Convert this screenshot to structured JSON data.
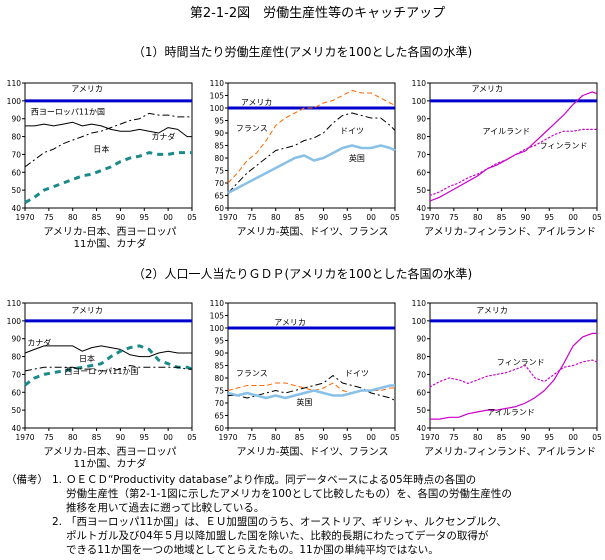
{
  "figure_title": "第2-1-2図　労働生産性等のキャッチアップ",
  "section1_title": "（1）時間当たり労働生産性(アメリカを100とした各国の水準)",
  "section2_title": "（2）人口一人当たりＧＤＰ(アメリカを100とした各国の水準)",
  "notes": {
    "prefix": "（備考）",
    "n1_num": "1.",
    "n1_line1": "ＯＥＣＤ“Productivity database”より作成。同データベースによる05年時点の各国の",
    "n1_line2": "労働生産性（第2-1-1図に示したアメリカを100として比較したもの）を、各国の労働生産性の",
    "n1_line3": "推移を用いて過去に遡って比較している。",
    "n2_num": "2.",
    "n2_line1": "「西ヨーロッパ11か国」は、ＥＵ加盟国のうち、オーストリア、ギリシャ、ルクセンブルク、",
    "n2_line2": "ポルトガル及び04年５月以降加盟した国を除いた、比較的長期にわたってデータの取得が",
    "n2_line3": "できる11か国を一つの地域としてとらえたもの。11か国の単純平均ではない。"
  },
  "chart_data": [
    {
      "type": "line",
      "id": "c1",
      "caption_line1": "アメリカ-日本、西ヨーロッパ",
      "caption_line2": "11か国、カナダ",
      "x_ticks": [
        "1970",
        "75",
        "80",
        "85",
        "90",
        "95",
        "00",
        "05"
      ],
      "y_ticks": [
        "40",
        "50",
        "60",
        "70",
        "80",
        "90",
        "100",
        "110"
      ],
      "ylim": [
        40,
        110
      ],
      "xlim": [
        1970,
        2005
      ],
      "series": [
        {
          "name": "アメリカ",
          "color": "#0000cc",
          "style": "solid",
          "width": 3,
          "label_x": 1983,
          "label_y": 107,
          "x": [
            1970,
            2005
          ],
          "y": [
            100,
            100
          ]
        },
        {
          "name": "西ヨーロッパ11か国",
          "color": "#000000",
          "style": "dashdot",
          "width": 1,
          "label_x": 1979,
          "label_y": 94,
          "x": [
            1970,
            1972,
            1974,
            1976,
            1978,
            1980,
            1982,
            1984,
            1986,
            1988,
            1990,
            1992,
            1994,
            1996,
            1998,
            2000,
            2002,
            2004,
            2005
          ],
          "y": [
            63,
            67,
            71,
            73,
            76,
            78,
            80,
            82,
            83,
            85,
            87,
            89,
            90,
            93,
            92,
            92,
            91,
            91,
            91
          ]
        },
        {
          "name": "カナダ",
          "color": "#000000",
          "style": "solid",
          "width": 1,
          "label_x": 1999,
          "label_y": 80,
          "x": [
            1970,
            1972,
            1974,
            1976,
            1978,
            1980,
            1982,
            1984,
            1986,
            1988,
            1990,
            1992,
            1994,
            1996,
            1998,
            2000,
            2002,
            2004,
            2005
          ],
          "y": [
            86,
            86,
            87,
            86,
            87,
            88,
            86,
            87,
            86,
            84,
            83,
            83,
            84,
            83,
            82,
            85,
            84,
            80,
            80
          ]
        },
        {
          "name": "日本",
          "color": "#1a8a8a",
          "style": "bigdash",
          "width": 3,
          "label_x": 1986,
          "label_y": 73,
          "x": [
            1970,
            1972,
            1974,
            1976,
            1978,
            1980,
            1982,
            1984,
            1986,
            1988,
            1990,
            1992,
            1994,
            1996,
            1998,
            2000,
            2002,
            2004,
            2005
          ],
          "y": [
            43,
            46,
            50,
            52,
            54,
            56,
            58,
            59,
            61,
            63,
            66,
            68,
            69,
            71,
            70,
            70,
            71,
            71,
            71
          ]
        }
      ]
    },
    {
      "type": "line",
      "id": "c2",
      "caption_line1": "アメリカ-英国、ドイツ、フランス",
      "caption_line2": "",
      "x_ticks": [
        "1970",
        "75",
        "80",
        "85",
        "90",
        "95",
        "00",
        "05"
      ],
      "y_ticks": [
        "60",
        "65",
        "70",
        "75",
        "80",
        "85",
        "90",
        "95",
        "100",
        "105",
        "110"
      ],
      "ylim": [
        60,
        110
      ],
      "xlim": [
        1970,
        2005
      ],
      "series": [
        {
          "name": "アメリカ",
          "color": "#0000cc",
          "style": "solid",
          "width": 3,
          "label_x": 1976,
          "label_y": 102.5,
          "x": [
            1970,
            2005
          ],
          "y": [
            100,
            100
          ]
        },
        {
          "name": "フランス",
          "color": "#ff6600",
          "style": "dash",
          "width": 1,
          "label_x": 1975,
          "label_y": 92,
          "x": [
            1970,
            1972,
            1974,
            1976,
            1978,
            1980,
            1982,
            1984,
            1986,
            1988,
            1990,
            1992,
            1994,
            1996,
            1998,
            2000,
            2002,
            2004,
            2005
          ],
          "y": [
            70,
            74,
            79,
            82,
            87,
            93,
            96,
            98,
            100,
            100,
            102,
            103,
            105,
            107,
            106,
            106,
            104,
            102,
            101
          ]
        },
        {
          "name": "ドイツ",
          "color": "#000000",
          "style": "dashdot",
          "width": 1,
          "label_x": 1996,
          "label_y": 91,
          "x": [
            1970,
            1972,
            1974,
            1976,
            1978,
            1980,
            1982,
            1984,
            1986,
            1988,
            1990,
            1992,
            1994,
            1996,
            1998,
            2000,
            2002,
            2004,
            2005
          ],
          "y": [
            66,
            70,
            74,
            77,
            80,
            83,
            84,
            85,
            87,
            88,
            90,
            94,
            97,
            98,
            97,
            96,
            96,
            93,
            91
          ]
        },
        {
          "name": "英国",
          "color": "#88c0e8",
          "style": "solid",
          "width": 2.5,
          "label_x": 1997,
          "label_y": 80,
          "x": [
            1970,
            1972,
            1974,
            1976,
            1978,
            1980,
            1982,
            1984,
            1986,
            1988,
            1990,
            1992,
            1994,
            1996,
            1998,
            2000,
            2002,
            2004,
            2005
          ],
          "y": [
            66,
            68,
            70,
            72,
            74,
            76,
            78,
            80,
            81,
            79,
            80,
            82,
            84,
            85,
            84,
            84,
            85,
            84,
            83
          ]
        }
      ]
    },
    {
      "type": "line",
      "id": "c3",
      "caption_line1": "アメリカ-フィンランド、アイルランド",
      "caption_line2": "",
      "x_ticks": [
        "1970",
        "75",
        "80",
        "85",
        "90",
        "95",
        "00",
        "05"
      ],
      "y_ticks": [
        "40",
        "50",
        "60",
        "70",
        "80",
        "90",
        "100",
        "110"
      ],
      "ylim": [
        40,
        110
      ],
      "xlim": [
        1970,
        2005
      ],
      "series": [
        {
          "name": "アメリカ",
          "color": "#0000cc",
          "style": "solid",
          "width": 3,
          "label_x": 1982,
          "label_y": 107,
          "x": [
            1970,
            2005
          ],
          "y": [
            100,
            100
          ]
        },
        {
          "name": "アイルランド",
          "color": "#cc00cc",
          "style": "solid",
          "width": 1.2,
          "label_x": 1986,
          "label_y": 83,
          "x": [
            1970,
            1972,
            1974,
            1976,
            1978,
            1980,
            1982,
            1984,
            1986,
            1988,
            1990,
            1992,
            1994,
            1996,
            1998,
            2000,
            2002,
            2004,
            2005
          ],
          "y": [
            44,
            46,
            49,
            52,
            55,
            58,
            62,
            64,
            67,
            70,
            72,
            77,
            82,
            87,
            92,
            98,
            103,
            105,
            104
          ]
        },
        {
          "name": "フィンランド",
          "color": "#cc00cc",
          "style": "dot",
          "width": 1.2,
          "label_x": 1998,
          "label_y": 75,
          "x": [
            1970,
            1972,
            1974,
            1976,
            1978,
            1980,
            1982,
            1984,
            1986,
            1988,
            1990,
            1992,
            1994,
            1996,
            1998,
            2000,
            2002,
            2004,
            2005
          ],
          "y": [
            47,
            49,
            52,
            54,
            57,
            59,
            62,
            65,
            67,
            70,
            73,
            75,
            78,
            81,
            83,
            83,
            84,
            84,
            84
          ]
        }
      ]
    },
    {
      "type": "line",
      "id": "c4",
      "caption_line1": "アメリカ-日本、西ヨーロッパ",
      "caption_line2": "11か国、カナダ",
      "x_ticks": [
        "1970",
        "75",
        "80",
        "85",
        "90",
        "95",
        "00",
        "05"
      ],
      "y_ticks": [
        "40",
        "50",
        "60",
        "70",
        "80",
        "90",
        "100",
        "110"
      ],
      "ylim": [
        40,
        110
      ],
      "xlim": [
        1970,
        2005
      ],
      "series": [
        {
          "name": "アメリカ",
          "color": "#0000cc",
          "style": "solid",
          "width": 3,
          "label_x": 1983,
          "label_y": 106,
          "x": [
            1970,
            2005
          ],
          "y": [
            100,
            100
          ]
        },
        {
          "name": "カナダ",
          "color": "#000000",
          "style": "solid",
          "width": 1,
          "label_x": 1973,
          "label_y": 88,
          "x": [
            1970,
            1972,
            1974,
            1976,
            1978,
            1980,
            1982,
            1984,
            1986,
            1988,
            1990,
            1992,
            1994,
            1996,
            1998,
            2000,
            2002,
            2004,
            2005
          ],
          "y": [
            82,
            84,
            86,
            86,
            86,
            86,
            83,
            85,
            86,
            85,
            84,
            81,
            80,
            80,
            82,
            83,
            82,
            82,
            82
          ]
        },
        {
          "name": "日本",
          "color": "#1a8a8a",
          "style": "bigdash",
          "width": 3,
          "label_x": 1983,
          "label_y": 79,
          "x": [
            1970,
            1972,
            1974,
            1976,
            1978,
            1980,
            1982,
            1984,
            1986,
            1988,
            1990,
            1992,
            1994,
            1996,
            1998,
            2000,
            2002,
            2004,
            2005
          ],
          "y": [
            64,
            68,
            70,
            71,
            72,
            73,
            74,
            75,
            76,
            80,
            83,
            85,
            86,
            84,
            78,
            76,
            74,
            74,
            73
          ]
        },
        {
          "name": "西ヨーロッパ11か国",
          "color": "#000000",
          "style": "dashdot",
          "width": 1,
          "label_x": 1986,
          "label_y": 72,
          "x": [
            1970,
            1972,
            1974,
            1976,
            1978,
            1980,
            1982,
            1984,
            1986,
            1988,
            1990,
            1992,
            1994,
            1996,
            1998,
            2000,
            2002,
            2004,
            2005
          ],
          "y": [
            72,
            73,
            74,
            74,
            74,
            74,
            73,
            73,
            72,
            72,
            73,
            75,
            74,
            74,
            74,
            74,
            74,
            73,
            73
          ]
        }
      ]
    },
    {
      "type": "line",
      "id": "c5",
      "caption_line1": "アメリカ-英国、ドイツ、フランス",
      "caption_line2": "",
      "x_ticks": [
        "1970",
        "75",
        "80",
        "85",
        "90",
        "95",
        "00",
        "05"
      ],
      "y_ticks": [
        "60",
        "65",
        "70",
        "75",
        "80",
        "85",
        "90",
        "95",
        "100",
        "105",
        "110"
      ],
      "ylim": [
        60,
        110
      ],
      "xlim": [
        1970,
        2005
      ],
      "series": [
        {
          "name": "アメリカ",
          "color": "#0000cc",
          "style": "solid",
          "width": 3,
          "label_x": 1983,
          "label_y": 102.5,
          "x": [
            1970,
            2005
          ],
          "y": [
            100,
            100
          ]
        },
        {
          "name": "フランス",
          "color": "#ff6600",
          "style": "dash",
          "width": 1,
          "label_x": 1975,
          "label_y": 82,
          "x": [
            1970,
            1972,
            1974,
            1976,
            1978,
            1980,
            1982,
            1984,
            1986,
            1988,
            1990,
            1992,
            1994,
            1996,
            1998,
            2000,
            2002,
            2004,
            2005
          ],
          "y": [
            75,
            76,
            77,
            77,
            77,
            78,
            78,
            77,
            76,
            75,
            76,
            78,
            75,
            74,
            75,
            75,
            75,
            76,
            76
          ]
        },
        {
          "name": "ドイツ",
          "color": "#000000",
          "style": "dashdot",
          "width": 1,
          "label_x": 1997,
          "label_y": 82,
          "x": [
            1970,
            1972,
            1974,
            1976,
            1978,
            1980,
            1982,
            1984,
            1986,
            1988,
            1990,
            1992,
            1994,
            1996,
            1998,
            2000,
            2002,
            2004,
            2005
          ],
          "y": [
            73,
            73,
            72,
            73,
            74,
            75,
            74,
            75,
            76,
            77,
            78,
            81,
            78,
            77,
            76,
            74,
            73,
            72,
            71
          ]
        },
        {
          "name": "英国",
          "color": "#88c0e8",
          "style": "solid",
          "width": 2.5,
          "label_x": 1986,
          "label_y": 70.5,
          "x": [
            1970,
            1972,
            1974,
            1976,
            1978,
            1980,
            1982,
            1984,
            1986,
            1988,
            1990,
            1992,
            1994,
            1996,
            1998,
            2000,
            2002,
            2004,
            2005
          ],
          "y": [
            74,
            73,
            74,
            73,
            72,
            73,
            72,
            73,
            74,
            75,
            74,
            73,
            73,
            74,
            75,
            75,
            76,
            77,
            77
          ]
        }
      ]
    },
    {
      "type": "line",
      "id": "c6",
      "caption_line1": "アメリカ-フィンランド、アイルランド",
      "caption_line2": "",
      "x_ticks": [
        "1970",
        "75",
        "80",
        "85",
        "90",
        "95",
        "00",
        "05"
      ],
      "y_ticks": [
        "40",
        "50",
        "60",
        "70",
        "80",
        "90",
        "100",
        "110"
      ],
      "ylim": [
        40,
        110
      ],
      "xlim": [
        1970,
        2005
      ],
      "series": [
        {
          "name": "アメリカ",
          "color": "#0000cc",
          "style": "solid",
          "width": 3,
          "label_x": 1983,
          "label_y": 106,
          "x": [
            1970,
            2005
          ],
          "y": [
            100,
            100
          ]
        },
        {
          "name": "フィンランド",
          "color": "#cc00cc",
          "style": "dot",
          "width": 1.2,
          "label_x": 1989,
          "label_y": 77,
          "x": [
            1970,
            1972,
            1974,
            1976,
            1978,
            1980,
            1982,
            1984,
            1986,
            1988,
            1990,
            1992,
            1994,
            1996,
            1998,
            2000,
            2002,
            2004,
            2005
          ],
          "y": [
            63,
            66,
            68,
            67,
            65,
            67,
            69,
            70,
            71,
            73,
            75,
            68,
            66,
            70,
            74,
            75,
            77,
            78,
            77
          ]
        },
        {
          "name": "アイルランド",
          "color": "#cc00cc",
          "style": "solid",
          "width": 1.2,
          "label_x": 1987,
          "label_y": 49,
          "x": [
            1970,
            1972,
            1974,
            1976,
            1978,
            1980,
            1982,
            1984,
            1986,
            1988,
            1990,
            1992,
            1994,
            1996,
            1998,
            2000,
            2002,
            2004,
            2005
          ],
          "y": [
            45,
            45,
            46,
            46,
            48,
            49,
            50,
            50,
            51,
            52,
            54,
            57,
            61,
            67,
            76,
            86,
            91,
            93,
            93
          ]
        }
      ]
    }
  ]
}
